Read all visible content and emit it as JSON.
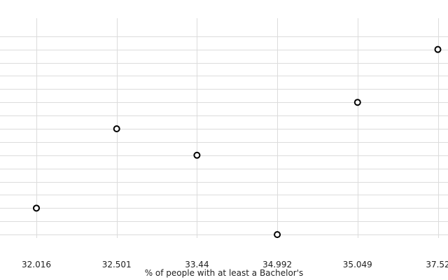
{
  "chart_data": {
    "type": "scatter",
    "title": "",
    "xlabel": "% of people with at least a Bachelor's",
    "ylabel": "",
    "categories": [
      "32.016",
      "32.501",
      "33.44",
      "34.992",
      "35.049",
      "37.52"
    ],
    "y": [
      2,
      5,
      4,
      1,
      6,
      8
    ],
    "ylim": [
      0.5,
      9.5
    ],
    "grid": true,
    "legend": "none",
    "colors": {
      "marker_stroke": "#000000",
      "grid": "#dcdcdc",
      "text": "#222222"
    }
  }
}
